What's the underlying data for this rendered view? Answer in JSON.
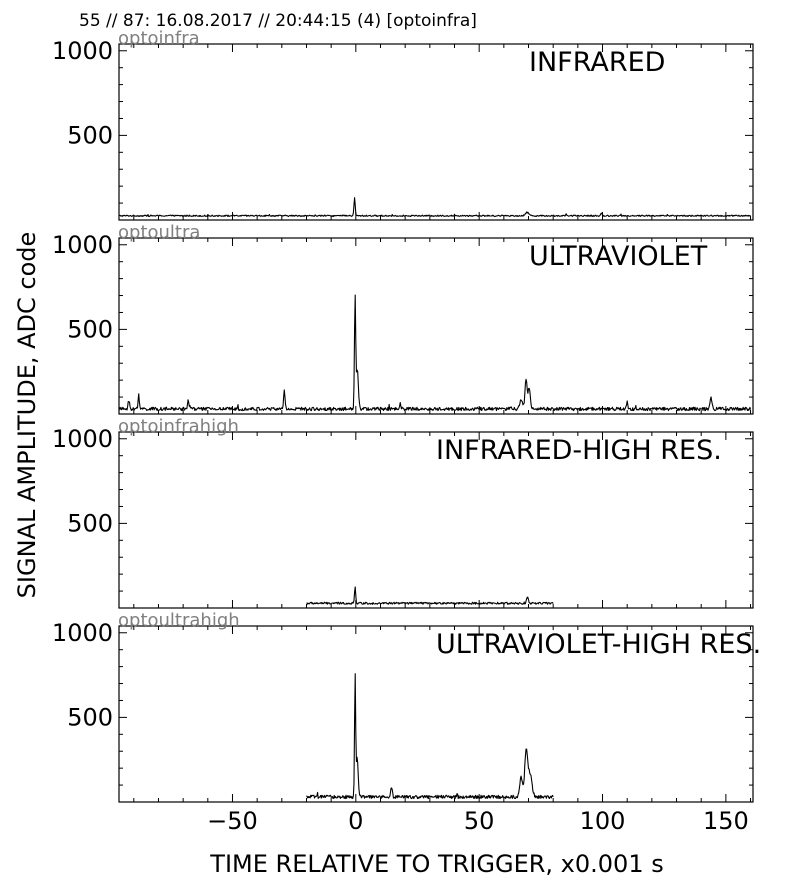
{
  "header": "55 // 87:   16.08.2017 // 20:44:15 (4)  [optoinfra]",
  "ylabel": "SIGNAL AMPLITUDE,  ADC code",
  "xlabel": "TIME RELATIVE TO TRIGGER,   x0.001 s",
  "x_ticks": [
    "−50",
    "0",
    "50",
    "100",
    "150"
  ],
  "colors": {
    "trace": "#000000",
    "channel_label": "#808080",
    "axes": "#000000"
  },
  "chart_data": [
    {
      "type": "line",
      "channel": "optoinfra",
      "title": "INFRARED",
      "xlim": [
        -96,
        161
      ],
      "ylim": [
        0,
        1040
      ],
      "y_ticks": [
        "1000",
        "500"
      ],
      "y_tick_values": [
        1000,
        500
      ],
      "x_range": [
        -96,
        160
      ],
      "baseline": 25,
      "noise": 4,
      "peaks": [
        {
          "x": -0.5,
          "height": 105,
          "width": 0.35
        },
        {
          "x": 69.5,
          "height": 20,
          "width": 1.0
        },
        {
          "x": 99.5,
          "height": 12,
          "width": 0.3
        }
      ]
    },
    {
      "type": "line",
      "channel": "optoultra",
      "title": "ULTRAVIOLET",
      "xlim": [
        -96,
        161
      ],
      "ylim": [
        0,
        1040
      ],
      "y_ticks": [
        "1000",
        "500"
      ],
      "y_tick_values": [
        1000,
        500
      ],
      "x_range": [
        -96,
        160
      ],
      "baseline": 30,
      "noise": 10,
      "peaks": [
        {
          "x": -92,
          "height": 50,
          "width": 0.4
        },
        {
          "x": -88,
          "height": 65,
          "width": 0.4
        },
        {
          "x": -68,
          "height": 50,
          "width": 0.4
        },
        {
          "x": -29,
          "height": 110,
          "width": 0.4
        },
        {
          "x": -0.3,
          "height": 660,
          "width": 0.35
        },
        {
          "x": 0.6,
          "height": 240,
          "width": 0.6
        },
        {
          "x": 18,
          "height": 35,
          "width": 0.4
        },
        {
          "x": 67,
          "height": 50,
          "width": 0.8
        },
        {
          "x": 69,
          "height": 180,
          "width": 0.6
        },
        {
          "x": 70.3,
          "height": 130,
          "width": 0.6
        },
        {
          "x": 110,
          "height": 40,
          "width": 0.4
        },
        {
          "x": 144,
          "height": 65,
          "width": 0.5
        }
      ]
    },
    {
      "type": "line",
      "channel": "optoinfrahigh",
      "title": "INFRARED-HIGH RES.",
      "xlim": [
        -96,
        161
      ],
      "ylim": [
        0,
        1040
      ],
      "y_ticks": [
        "1000",
        "500"
      ],
      "y_tick_values": [
        1000,
        500
      ],
      "x_range": [
        -20,
        80
      ],
      "baseline": 28,
      "noise": 6,
      "peaks": [
        {
          "x": -0.3,
          "height": 95,
          "width": 0.35
        },
        {
          "x": 69.5,
          "height": 40,
          "width": 0.5
        }
      ]
    },
    {
      "type": "line",
      "channel": "optoultrahigh",
      "title": "ULTRAVIOLET-HIGH RES.",
      "xlim": [
        -96,
        161
      ],
      "ylim": [
        0,
        1040
      ],
      "y_ticks": [
        "1000",
        "500"
      ],
      "y_tick_values": [
        1000,
        500
      ],
      "x_range": [
        -20,
        80
      ],
      "baseline": 30,
      "noise": 10,
      "peaks": [
        {
          "x": -0.3,
          "height": 700,
          "width": 0.3
        },
        {
          "x": 0.5,
          "height": 230,
          "width": 0.6
        },
        {
          "x": 14.5,
          "height": 60,
          "width": 0.4
        },
        {
          "x": 67,
          "height": 120,
          "width": 0.8
        },
        {
          "x": 69,
          "height": 250,
          "width": 0.8
        },
        {
          "x": 70.5,
          "height": 140,
          "width": 1.2
        }
      ]
    }
  ]
}
